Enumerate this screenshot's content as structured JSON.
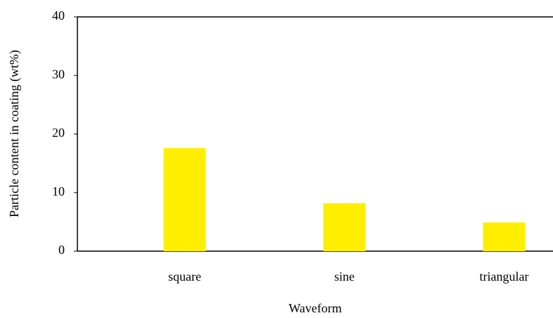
{
  "chart_data": {
    "type": "bar",
    "x_label": "Waveform",
    "y_label": "Particle content in coating (wt%)",
    "categories": [
      "square",
      "sine",
      "triangular"
    ],
    "values": [
      17.6,
      8.2,
      4.9
    ],
    "color": "#ffee00",
    "ylim": [
      0,
      40
    ],
    "yticks": [
      0,
      10,
      20,
      30,
      40
    ],
    "grid": false
  }
}
